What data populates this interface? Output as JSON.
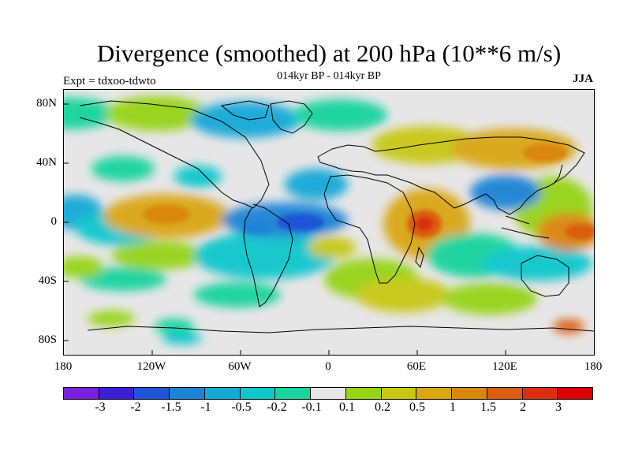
{
  "title": "Divergence (smoothed) at 200 hPa (10**6 m/s)",
  "subtitle": "014kyr BP - 014kyr BP",
  "experiment": "Expt = tdxoo-tdwto",
  "season": "JJA",
  "map": {
    "background_color": "#e6e6e6",
    "coastline_color": "#000000",
    "latitude_labels": [
      "80N",
      "40N",
      "0",
      "40S",
      "80S"
    ],
    "longitude_labels": [
      "180",
      "120W",
      "60W",
      "0",
      "60E",
      "120E",
      "180"
    ]
  },
  "colorbar": {
    "colors": [
      "#7a20dc",
      "#3b1fd8",
      "#1f55d6",
      "#1b84d5",
      "#15a9d8",
      "#10c7cc",
      "#19d49d",
      "#e6e6e6",
      "#96d415",
      "#c8c814",
      "#d9a712",
      "#d9870f",
      "#db5d10",
      "#dc2d10",
      "#dc0000"
    ],
    "labels": [
      "-3",
      "-2",
      "-1.5",
      "-1",
      "-0.5",
      "-0.2",
      "-0.1",
      "0.1",
      "0.2",
      "0.5",
      "1",
      "1.5",
      "2",
      "3"
    ]
  }
}
